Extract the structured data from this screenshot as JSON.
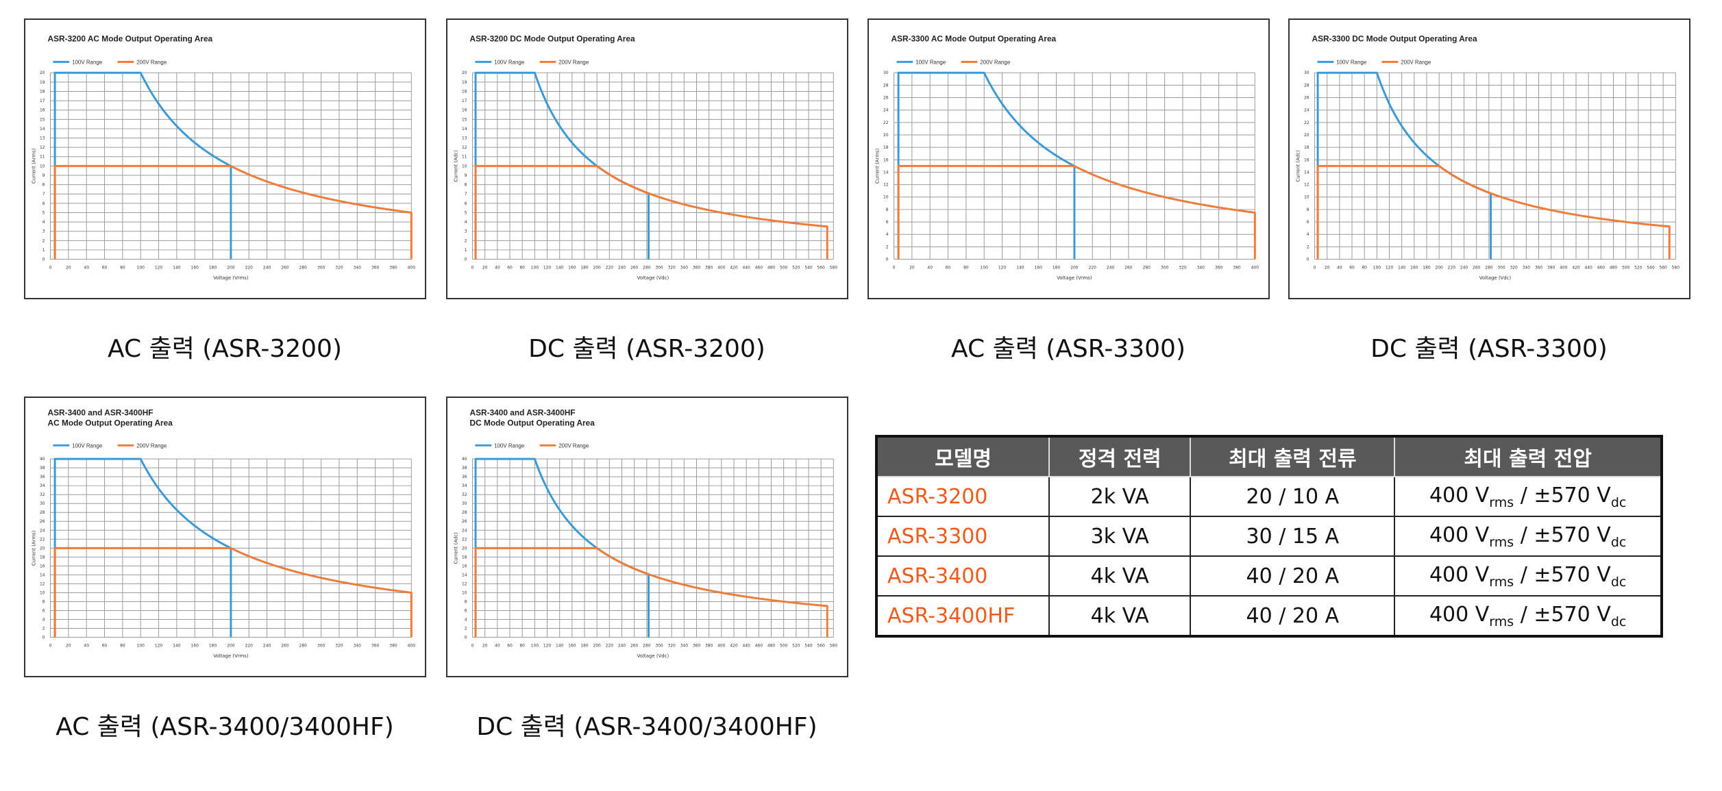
{
  "colors": {
    "series_100v": "#3b9ad6",
    "series_200v": "#ef7b3a",
    "grid": "#9a9a9a",
    "table_header": "#595959",
    "model_text": "#f25a1c"
  },
  "charts": [
    {
      "type": "line",
      "title": [
        "ASR-3200 AC Mode Output Operating Area"
      ],
      "legend": [
        "100V Range",
        "200V Range"
      ],
      "xlabel": "Voltage (Vrms)",
      "ylabel": "Current (Arms)",
      "xlim": [
        0,
        400
      ],
      "xstep": 20,
      "ylim": [
        0,
        20
      ],
      "ystep": 1,
      "series": [
        {
          "name": "100V Range",
          "v_start": 5,
          "i_max": 20,
          "v_knee": 100,
          "power_va": 2000,
          "v_end": 200
        },
        {
          "name": "200V Range",
          "v_start": 5,
          "i_max": 10,
          "v_knee": 200,
          "power_va": 2000,
          "v_end": 400
        }
      ],
      "caption": "AC 출력 (ASR-3200)"
    },
    {
      "type": "line",
      "title": [
        "ASR-3200 DC Mode Output Operating Area"
      ],
      "legend": [
        "100V Range",
        "200V Range"
      ],
      "xlabel": "Voltage (Vdc)",
      "ylabel": "Current (Adc)",
      "xlim": [
        0,
        580
      ],
      "xstep": 20,
      "ylim": [
        0,
        20
      ],
      "ystep": 1,
      "series": [
        {
          "name": "100V Range",
          "v_start": 5,
          "i_max": 20,
          "v_knee": 100,
          "power_va": 2000,
          "v_end": 283
        },
        {
          "name": "200V Range",
          "v_start": 5,
          "i_max": 10,
          "v_knee": 200,
          "power_va": 2000,
          "v_end": 570
        }
      ],
      "caption": "DC 출력 (ASR-3200)"
    },
    {
      "type": "line",
      "title": [
        "ASR-3300 AC Mode Output Operating Area"
      ],
      "legend": [
        "100V Range",
        "200V Range"
      ],
      "xlabel": "Voltage (Vrms)",
      "ylabel": "Current (Arms)",
      "xlim": [
        0,
        400
      ],
      "xstep": 20,
      "ylim": [
        0,
        30
      ],
      "ystep": 2,
      "series": [
        {
          "name": "100V Range",
          "v_start": 5,
          "i_max": 30,
          "v_knee": 100,
          "power_va": 3000,
          "v_end": 200
        },
        {
          "name": "200V Range",
          "v_start": 5,
          "i_max": 15,
          "v_knee": 200,
          "power_va": 3000,
          "v_end": 400
        }
      ],
      "caption": "AC 출력 (ASR-3300)"
    },
    {
      "type": "line",
      "title": [
        "ASR-3300 DC Mode Output Operating Area"
      ],
      "legend": [
        "100V Range",
        "200V Range"
      ],
      "xlabel": "Voltage (Vdc)",
      "ylabel": "Current (Adc)",
      "xlim": [
        0,
        580
      ],
      "xstep": 20,
      "ylim": [
        0,
        30
      ],
      "ystep": 2,
      "series": [
        {
          "name": "100V Range",
          "v_start": 5,
          "i_max": 30,
          "v_knee": 100,
          "power_va": 3000,
          "v_end": 283
        },
        {
          "name": "200V Range",
          "v_start": 5,
          "i_max": 15,
          "v_knee": 200,
          "power_va": 3000,
          "v_end": 570
        }
      ],
      "caption": "DC 출력 (ASR-3300)"
    },
    {
      "type": "line",
      "title": [
        "ASR-3400 and ASR-3400HF",
        "AC Mode Output Operating Area"
      ],
      "legend": [
        "100V Range",
        "200V Range"
      ],
      "xlabel": "Voltage (Vrms)",
      "ylabel": "Current (Arms)",
      "xlim": [
        0,
        400
      ],
      "xstep": 20,
      "ylim": [
        0,
        40
      ],
      "ystep": 2,
      "series": [
        {
          "name": "100V Range",
          "v_start": 5,
          "i_max": 40,
          "v_knee": 100,
          "power_va": 4000,
          "v_end": 200
        },
        {
          "name": "200V Range",
          "v_start": 5,
          "i_max": 20,
          "v_knee": 200,
          "power_va": 4000,
          "v_end": 400
        }
      ],
      "caption": "AC 출력 (ASR-3400/3400HF)"
    },
    {
      "type": "line",
      "title": [
        "ASR-3400 and ASR-3400HF",
        "DC Mode Output Operating Area"
      ],
      "legend": [
        "100V Range",
        "200V Range"
      ],
      "xlabel": "Voltage (Vdc)",
      "ylabel": "Current (Adc)",
      "xlim": [
        0,
        580
      ],
      "xstep": 20,
      "ylim": [
        0,
        40
      ],
      "ystep": 2,
      "series": [
        {
          "name": "100V Range",
          "v_start": 5,
          "i_max": 40,
          "v_knee": 100,
          "power_va": 4000,
          "v_end": 283
        },
        {
          "name": "200V Range",
          "v_start": 5,
          "i_max": 20,
          "v_knee": 200,
          "power_va": 4000,
          "v_end": 570
        }
      ],
      "caption": "DC 출력 (ASR-3400/3400HF)"
    }
  ],
  "table": {
    "headers": [
      "모델명",
      "정격 전력",
      "최대 출력 전류",
      "최대 출력 전압"
    ],
    "rows": [
      {
        "model": "ASR-3200",
        "power": "2k VA",
        "current": "20 / 10 A",
        "v_ac": "400 V",
        "ac_sub": "rms",
        "sep": " / ±570 V",
        "v_dc_sub": "dc"
      },
      {
        "model": "ASR-3300",
        "power": "3k VA",
        "current": "30 / 15 A",
        "v_ac": "400 V",
        "ac_sub": "rms",
        "sep": " / ±570 V",
        "v_dc_sub": "dc"
      },
      {
        "model": "ASR-3400",
        "power": "4k VA",
        "current": "40 / 20 A",
        "v_ac": "400 V",
        "ac_sub": "rms",
        "sep": " / ±570 V",
        "v_dc_sub": "dc"
      },
      {
        "model": "ASR-3400HF",
        "power": "4k VA",
        "current": "40 / 20 A",
        "v_ac": "400 V",
        "ac_sub": "rms",
        "sep": " / ±570 V",
        "v_dc_sub": "dc"
      }
    ]
  }
}
